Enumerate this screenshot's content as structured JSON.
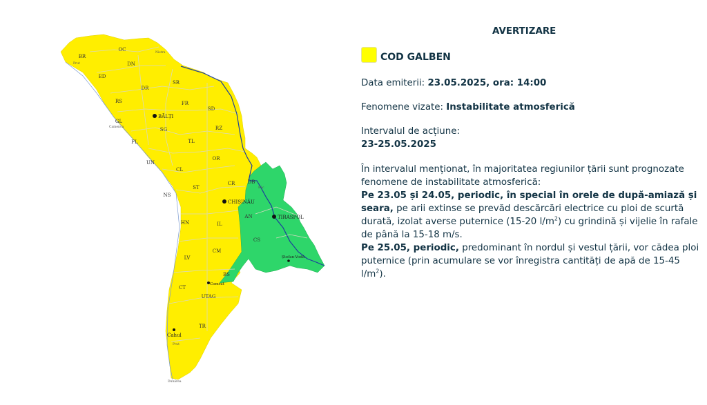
{
  "colors": {
    "yellow": "#ffee00",
    "green": "#2ed66a",
    "text": "#123344",
    "river": "#1d3f9c",
    "border": "#d8d8c0"
  },
  "map": {
    "regions": [
      "BR",
      "OC",
      "DN",
      "ED",
      "DR",
      "SR",
      "RS",
      "FR",
      "SD",
      "GL",
      "SG",
      "RZ",
      "FL",
      "TL",
      "UN",
      "OR",
      "CL",
      "CR",
      "DB",
      "ST",
      "NS",
      "AN",
      "HN",
      "IL",
      "CS",
      "CM",
      "LV",
      "BS",
      "CT",
      "UTAG",
      "TR"
    ],
    "cities": [
      "BĂLȚI",
      "CHIȘINĂU",
      "TIRASPOL",
      "Ștefan-Vodă",
      "Comrat",
      "Cahul"
    ],
    "rivers": [
      "Nistru",
      "Prut",
      "Camenca",
      "Bâc",
      "Prut",
      "Dunărea"
    ]
  },
  "panel": {
    "title": "AVERTIZARE",
    "code_label": "COD GALBEN",
    "issued_label": "Data emiterii: ",
    "issued_value": "23.05.2025, ora: 14:00",
    "phenomena_label": "Fenomene vizate: ",
    "phenomena_value": "Instabilitate atmosferică",
    "interval_label": "Intervalul de acțiune:",
    "interval_value": "23-25.05.2025",
    "intro": "În intervalul menționat, în majoritatea regiunilor țării sunt prognozate fenomene de instabilitate atmosferică:",
    "p1_bold": "Pe 23.05 și 24.05, periodic, în special în orele de după-amiază și seara,",
    "p1_text_a": " pe arii extinse se prevăd descărcări electrice cu ploi de scurtă durată, izolat averse puternice (15-20 l/m",
    "sup": "2",
    "p1_text_b": ") cu grindină și vijelie în rafale de până la 15-18 m/s.",
    "p2_bold": "Pe 25.05, periodic,",
    "p2_text_a": " predominant în nordul și vestul țării, vor cădea ploi puternice (prin acumulare se vor înregistra cantități de apă de 15-45 l/m",
    "p2_text_b": ")."
  }
}
